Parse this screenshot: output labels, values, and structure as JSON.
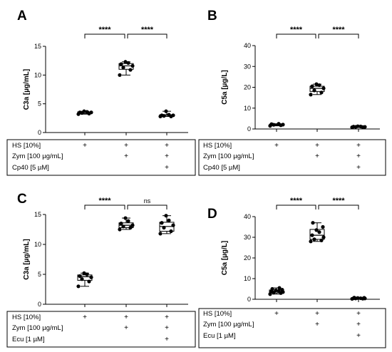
{
  "chart_data": [
    {
      "panel": "A",
      "type": "box",
      "ylabel": "C3a [µg/mL]",
      "ylim": [
        0,
        15
      ],
      "yticks": [
        0,
        5,
        10,
        15
      ],
      "groups": [
        {
          "points": [
            3.2,
            3.3,
            3.4,
            3.5,
            3.5,
            3.6,
            3.7
          ],
          "q1": 3.3,
          "median": 3.5,
          "q3": 3.6,
          "min": 3.2,
          "max": 3.7
        },
        {
          "points": [
            10.0,
            10.9,
            11.3,
            11.6,
            11.9,
            12.1,
            12.3
          ],
          "q1": 11.0,
          "median": 11.6,
          "q3": 12.0,
          "min": 10.0,
          "max": 12.3
        },
        {
          "points": [
            2.8,
            2.8,
            2.9,
            3.0,
            3.0,
            3.1,
            3.7
          ],
          "q1": 2.8,
          "median": 3.0,
          "q3": 3.1,
          "min": 2.8,
          "max": 3.7
        }
      ],
      "comparisons": [
        {
          "from": 0,
          "to": 1,
          "label": "****"
        },
        {
          "from": 1,
          "to": 2,
          "label": "****"
        }
      ],
      "conditions": [
        {
          "label": "HS [10%]",
          "marks": [
            "+",
            "+",
            "+"
          ]
        },
        {
          "label": "Zym [100 µg/mL]",
          "marks": [
            "",
            "+",
            "+"
          ]
        },
        {
          "label": "Cp40 [5 µM]",
          "marks": [
            "",
            "",
            "+"
          ]
        }
      ]
    },
    {
      "panel": "B",
      "type": "box",
      "ylabel": "C5a [µg/L]",
      "ylim": [
        0,
        40
      ],
      "yticks": [
        0,
        10,
        20,
        30,
        40
      ],
      "groups": [
        {
          "points": [
            1.5,
            1.8,
            2.0,
            2.1,
            2.3,
            2.5
          ],
          "q1": 1.8,
          "median": 2.0,
          "q3": 2.3,
          "min": 1.5,
          "max": 2.5
        },
        {
          "points": [
            16.5,
            17.5,
            18.5,
            19.5,
            20.5,
            21.0,
            21.5
          ],
          "q1": 18.0,
          "median": 19.5,
          "q3": 20.5,
          "min": 16.5,
          "max": 21.5
        },
        {
          "points": [
            0.8,
            0.9,
            1.0,
            1.0,
            1.1,
            1.2,
            1.3
          ],
          "q1": 0.9,
          "median": 1.0,
          "q3": 1.2,
          "min": 0.8,
          "max": 1.3
        }
      ],
      "comparisons": [
        {
          "from": 0,
          "to": 1,
          "label": "****"
        },
        {
          "from": 1,
          "to": 2,
          "label": "****"
        }
      ],
      "conditions": [
        {
          "label": "HS [10%]",
          "marks": [
            "+",
            "+",
            "+"
          ]
        },
        {
          "label": "Zym [100 µg/mL]",
          "marks": [
            "",
            "+",
            "+"
          ]
        },
        {
          "label": "Cp40 [5 µM]",
          "marks": [
            "",
            "",
            "+"
          ]
        }
      ]
    },
    {
      "panel": "C",
      "type": "box",
      "ylabel": "C3a [µg/mL]",
      "ylim": [
        0,
        15
      ],
      "yticks": [
        0,
        5,
        10,
        15
      ],
      "groups": [
        {
          "points": [
            3.0,
            3.8,
            4.2,
            4.5,
            4.7,
            5.0,
            5.2
          ],
          "q1": 4.0,
          "median": 4.6,
          "q3": 4.9,
          "min": 3.0,
          "max": 5.2
        },
        {
          "points": [
            12.5,
            12.8,
            13.0,
            13.2,
            13.5,
            13.9,
            14.4
          ],
          "q1": 12.8,
          "median": 13.2,
          "q3": 13.6,
          "min": 12.5,
          "max": 14.4
        },
        {
          "points": [
            11.8,
            12.2,
            12.8,
            13.2,
            13.6,
            14.0,
            14.8
          ],
          "q1": 12.2,
          "median": 13.0,
          "q3": 13.7,
          "min": 11.8,
          "max": 14.8
        }
      ],
      "comparisons": [
        {
          "from": 0,
          "to": 1,
          "label": "****"
        },
        {
          "from": 1,
          "to": 2,
          "label": "ns"
        }
      ],
      "conditions": [
        {
          "label": "HS [10%]",
          "marks": [
            "+",
            "+",
            "+"
          ]
        },
        {
          "label": "Zym [100 µg/mL]",
          "marks": [
            "",
            "+",
            "+"
          ]
        },
        {
          "label": "Ecu [1 µM]",
          "marks": [
            "",
            "",
            "+"
          ]
        }
      ]
    },
    {
      "panel": "D",
      "type": "box",
      "ylabel": "C5a [µg/L]",
      "ylim": [
        0,
        40
      ],
      "yticks": [
        0,
        10,
        20,
        30,
        40
      ],
      "groups": [
        {
          "points": [
            2.5,
            3.0,
            3.2,
            3.5,
            3.8,
            4.0,
            4.3,
            4.6,
            5.0,
            5.5
          ],
          "q1": 3.1,
          "median": 3.8,
          "q3": 4.5,
          "min": 2.5,
          "max": 5.5
        },
        {
          "points": [
            28.0,
            28.5,
            29.0,
            30.0,
            31.0,
            32.5,
            33.5,
            35.0,
            37.0
          ],
          "q1": 29.0,
          "median": 31.0,
          "q3": 33.8,
          "min": 28.0,
          "max": 37.0
        },
        {
          "points": [
            0.2,
            0.3,
            0.4,
            0.4,
            0.5,
            0.5,
            0.6,
            0.7,
            0.8
          ],
          "q1": 0.3,
          "median": 0.5,
          "q3": 0.6,
          "min": 0.2,
          "max": 0.8
        }
      ],
      "comparisons": [
        {
          "from": 0,
          "to": 1,
          "label": "****"
        },
        {
          "from": 1,
          "to": 2,
          "label": "****"
        }
      ],
      "conditions": [
        {
          "label": "HS [10%]",
          "marks": [
            "+",
            "+",
            "+"
          ]
        },
        {
          "label": "Zym [100 µg/mL]",
          "marks": [
            "",
            "+",
            "+"
          ]
        },
        {
          "label": "Ecu [1 µM]",
          "marks": [
            "",
            "",
            "+"
          ]
        }
      ]
    }
  ]
}
